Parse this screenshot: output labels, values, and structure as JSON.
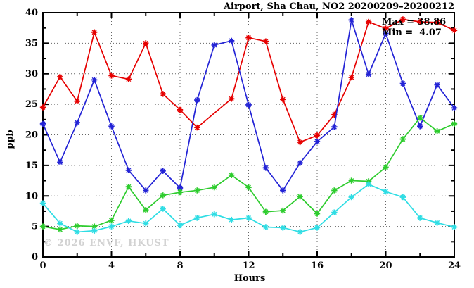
{
  "title": "Airport, Sha Chau, NO2 20200209–20200212",
  "watermark": "© 2026 ENVF, HKUST",
  "legend": {
    "max_line": "Max = 38.86",
    "min_line": "Min =  4.07"
  },
  "chart_data": {
    "type": "line",
    "title": "Airport, Sha Chau, NO2 20200209–20200212",
    "xlabel": "Hours",
    "ylabel": "ppb",
    "xlim": [
      0,
      24
    ],
    "ylim": [
      0,
      40
    ],
    "x_ticks": [
      0,
      4,
      8,
      12,
      16,
      20,
      24
    ],
    "x_minor_ticks": [
      2,
      6,
      10,
      14,
      18,
      22
    ],
    "y_ticks": [
      0,
      5,
      10,
      15,
      20,
      25,
      30,
      35,
      40
    ],
    "y_minor_ticks": [
      2.5,
      7.5,
      12.5,
      17.5,
      22.5,
      27.5,
      32.5,
      37.5
    ],
    "grid_x": [
      4,
      8,
      12,
      16,
      20
    ],
    "grid_y": [
      5,
      10,
      15,
      20,
      25,
      30,
      35
    ],
    "grid_on": true,
    "legend_position": "top-right-inside",
    "stats": {
      "max": 38.86,
      "min": 4.07
    },
    "x": [
      0,
      1,
      2,
      3,
      4,
      5,
      6,
      7,
      8,
      9,
      10,
      11,
      12,
      13,
      14,
      15,
      16,
      17,
      18,
      19,
      20,
      21,
      22,
      23,
      24
    ],
    "series": [
      {
        "name": "red",
        "color": "#e60000",
        "values": [
          24.5,
          29.5,
          25.5,
          36.8,
          29.7,
          29.1,
          35.0,
          26.7,
          24.1,
          21.2,
          null,
          25.9,
          35.9,
          35.3,
          25.8,
          18.8,
          19.9,
          23.3,
          29.4,
          38.5,
          37.4,
          38.9,
          38.5,
          38.4,
          37.1
        ]
      },
      {
        "name": "blue",
        "color": "#2323d6",
        "values": [
          21.8,
          15.5,
          22.0,
          29.0,
          21.4,
          14.2,
          10.9,
          14.1,
          11.3,
          25.7,
          34.7,
          35.4,
          24.9,
          14.6,
          10.9,
          15.4,
          18.9,
          21.3,
          38.8,
          29.9,
          36.6,
          28.4,
          21.4,
          28.2,
          24.4
        ]
      },
      {
        "name": "green",
        "color": "#2ecc2e",
        "values": [
          5.0,
          4.5,
          5.1,
          5.0,
          6.0,
          11.5,
          7.7,
          10.1,
          10.6,
          10.9,
          11.4,
          13.4,
          11.4,
          7.4,
          7.6,
          9.9,
          7.1,
          10.9,
          12.5,
          12.4,
          14.7,
          19.3,
          22.8,
          20.6,
          21.8
        ]
      },
      {
        "name": "cyan",
        "color": "#2fdde4",
        "values": [
          8.8,
          5.5,
          4.1,
          4.3,
          5.0,
          5.9,
          5.5,
          7.9,
          5.2,
          6.4,
          7.0,
          6.1,
          6.4,
          4.9,
          4.8,
          4.1,
          4.8,
          7.3,
          9.8,
          11.9,
          10.7,
          9.8,
          6.4,
          5.6,
          4.9
        ]
      }
    ]
  }
}
